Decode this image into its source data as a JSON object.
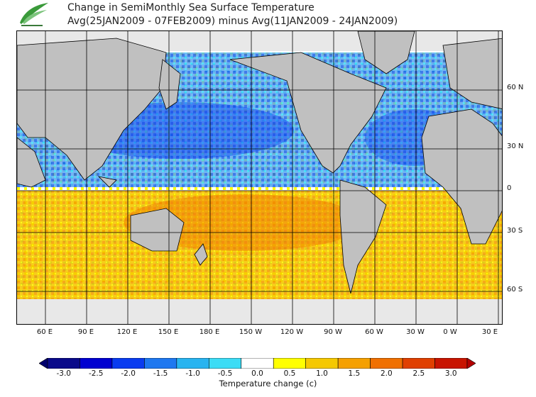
{
  "header": {
    "title_line1": "Change in SemiMonthly Sea Surface Temperature",
    "title_line2": "Avg(25JAN2009 - 07FEB2009) minus Avg(11JAN2009 - 24JAN2009)",
    "logo_icon": "leaf-logo-icon"
  },
  "map": {
    "projection": "cylindrical",
    "lat_labels": [
      "60 N",
      "30 N",
      "0",
      "30 S",
      "60 S"
    ],
    "lon_labels": [
      "60 E",
      "90 E",
      "120 E",
      "150 E",
      "180 E",
      "150 W",
      "120 W",
      "90 W",
      "60 W",
      "30 W",
      "0 W",
      "30 E"
    ],
    "land_color": "#c0c0c0",
    "ice_color": "#e8e8e8"
  },
  "colorbar": {
    "title": "Temperature change  (c)",
    "tick_labels": [
      "-3.0",
      "-2.5",
      "-2.0",
      "-1.5",
      "-1.0",
      "-0.5",
      "0.0",
      "0.5",
      "1.0",
      "1.5",
      "2.0",
      "2.5",
      "3.0"
    ],
    "colors": [
      "#0a0a8a",
      "#0000d0",
      "#0a3cf0",
      "#1e78f0",
      "#28b4f0",
      "#3cdcf5",
      "#ffffff",
      "#ffff00",
      "#f5c800",
      "#f5a000",
      "#f07000",
      "#e04000",
      "#c81400"
    ],
    "arrow_low_color": "#00006e",
    "arrow_high_color": "#b40000"
  }
}
